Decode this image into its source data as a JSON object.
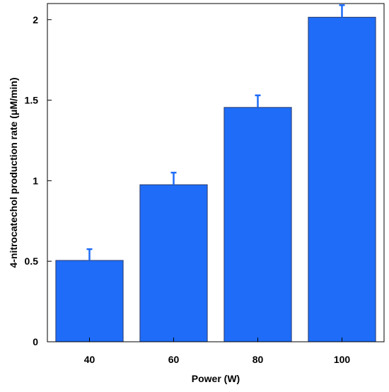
{
  "chart_data": {
    "type": "bar",
    "categories": [
      "40",
      "60",
      "80",
      "100"
    ],
    "values": [
      0.505,
      0.975,
      1.455,
      2.015
    ],
    "errors": [
      0.07,
      0.075,
      0.075,
      0.075
    ],
    "xlabel": "Power (W)",
    "ylabel": "4-nitrocatechol production rate (μM/min)",
    "ylim": [
      0,
      2.1
    ],
    "yticks": [
      0,
      0.5,
      1,
      1.5,
      2
    ],
    "ytick_labels": [
      "0",
      "0.5",
      "1",
      "1.5",
      "2"
    ],
    "grid": false,
    "legend": "none",
    "colors": {
      "bar": "#1e6cf8",
      "bar_edge": "#2a3a6a",
      "error_bar": "#1e6cf8",
      "axis": "#000000"
    }
  }
}
